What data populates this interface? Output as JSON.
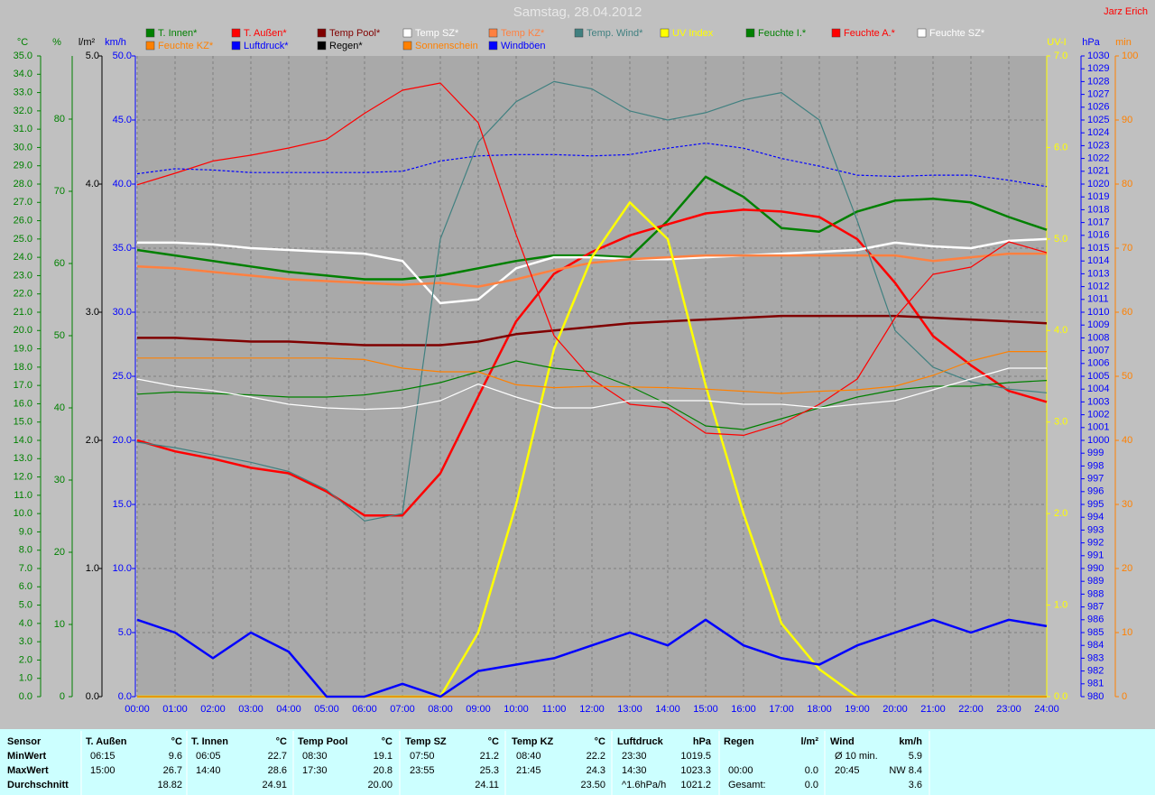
{
  "chart_data": {
    "type": "line",
    "title": "Samstag, 28.04.2012",
    "author": "Jarz Erich",
    "xlim": [
      0,
      24
    ],
    "xticks": [
      {
        "value": 0,
        "label": "00:00"
      },
      {
        "value": 1,
        "label": "01:00"
      },
      {
        "value": 2,
        "label": "02:00"
      },
      {
        "value": 3,
        "label": "03:00"
      },
      {
        "value": 4,
        "label": "04:00"
      },
      {
        "value": 5,
        "label": "05:00"
      },
      {
        "value": 6,
        "label": "06:00"
      },
      {
        "value": 7,
        "label": "07:00"
      },
      {
        "value": 8,
        "label": "08:00"
      },
      {
        "value": 9,
        "label": "09:00"
      },
      {
        "value": 10,
        "label": "10:00"
      },
      {
        "value": 11,
        "label": "11:00"
      },
      {
        "value": 12,
        "label": "12:00"
      },
      {
        "value": 13,
        "label": "13:00"
      },
      {
        "value": 14,
        "label": "14:00"
      },
      {
        "value": 15,
        "label": "15:00"
      },
      {
        "value": 16,
        "label": "16:00"
      },
      {
        "value": 17,
        "label": "17:00"
      },
      {
        "value": 18,
        "label": "18:00"
      },
      {
        "value": 19,
        "label": "19:00"
      },
      {
        "value": 20,
        "label": "20:00"
      },
      {
        "value": 21,
        "label": "21:00"
      },
      {
        "value": 22,
        "label": "22:00"
      },
      {
        "value": 23,
        "label": "23:00"
      },
      {
        "value": 24,
        "label": "24:00"
      }
    ],
    "x": [
      0,
      1,
      2,
      3,
      4,
      5,
      6,
      7,
      8,
      9,
      10,
      11,
      12,
      13,
      14,
      15,
      16,
      17,
      18,
      19,
      20,
      21,
      22,
      23,
      24
    ],
    "grid": true,
    "grid_axis": 3,
    "axes": [
      {
        "label": "°C",
        "color": "#008000",
        "lim": [
          0,
          35
        ],
        "ticks": [
          {
            "value": 0,
            "label": "0.0"
          },
          {
            "value": 1,
            "label": "1.0"
          },
          {
            "value": 2,
            "label": "2.0"
          },
          {
            "value": 3,
            "label": "3.0"
          },
          {
            "value": 4,
            "label": "4.0"
          },
          {
            "value": 5,
            "label": "5.0"
          },
          {
            "value": 6,
            "label": "6.0"
          },
          {
            "value": 7,
            "label": "7.0"
          },
          {
            "value": 8,
            "label": "8.0"
          },
          {
            "value": 9,
            "label": "9.0"
          },
          {
            "value": 10,
            "label": "10.0"
          },
          {
            "value": 11,
            "label": "11.0"
          },
          {
            "value": 12,
            "label": "12.0"
          },
          {
            "value": 13,
            "label": "13.0"
          },
          {
            "value": 14,
            "label": "14.0"
          },
          {
            "value": 15,
            "label": "15.0"
          },
          {
            "value": 16,
            "label": "16.0"
          },
          {
            "value": 17,
            "label": "17.0"
          },
          {
            "value": 18,
            "label": "18.0"
          },
          {
            "value": 19,
            "label": "19.0"
          },
          {
            "value": 20,
            "label": "20.0"
          },
          {
            "value": 21,
            "label": "21.0"
          },
          {
            "value": 22,
            "label": "22.0"
          },
          {
            "value": 23,
            "label": "23.0"
          },
          {
            "value": 24,
            "label": "24.0"
          },
          {
            "value": 25,
            "label": "25.0"
          },
          {
            "value": 26,
            "label": "26.0"
          },
          {
            "value": 27,
            "label": "27.0"
          },
          {
            "value": 28,
            "label": "28.0"
          },
          {
            "value": 29,
            "label": "29.0"
          },
          {
            "value": 30,
            "label": "30.0"
          },
          {
            "value": 31,
            "label": "31.0"
          },
          {
            "value": 32,
            "label": "32.0"
          },
          {
            "value": 33,
            "label": "33.0"
          },
          {
            "value": 34,
            "label": "34.0"
          },
          {
            "value": 35,
            "label": "35.0"
          }
        ]
      },
      {
        "label": "%",
        "color": "#008000",
        "lim": [
          0,
          88.75
        ],
        "ticks": [
          0,
          10,
          20,
          30,
          40,
          50,
          60,
          70,
          80
        ]
      },
      {
        "label": "l/m²",
        "color": "#000000",
        "lim": [
          0,
          5
        ],
        "ticks": [
          {
            "value": 0,
            "label": "0.0"
          },
          {
            "value": 1,
            "label": "1.0"
          },
          {
            "value": 2,
            "label": "2.0"
          },
          {
            "value": 3,
            "label": "3.0"
          },
          {
            "value": 4,
            "label": "4.0"
          },
          {
            "value": 5,
            "label": "5.0"
          }
        ]
      },
      {
        "label": "km/h",
        "color": "#0000ff",
        "lim": [
          0,
          50
        ],
        "ticks": [
          {
            "value": 0,
            "label": "0.0"
          },
          {
            "value": 5,
            "label": "5.0"
          },
          {
            "value": 10,
            "label": "10.0"
          },
          {
            "value": 15,
            "label": "15.0"
          },
          {
            "value": 20,
            "label": "20.0"
          },
          {
            "value": 25,
            "label": "25.0"
          },
          {
            "value": 30,
            "label": "30.0"
          },
          {
            "value": 35,
            "label": "35.0"
          },
          {
            "value": 40,
            "label": "40.0"
          },
          {
            "value": 45,
            "label": "45.0"
          },
          {
            "value": 50,
            "label": "50.0"
          }
        ]
      },
      {
        "label": "UV-I",
        "color": "#ffff00",
        "lim": [
          0,
          7
        ],
        "ticks": [
          {
            "value": 0,
            "label": "0.0"
          },
          {
            "value": 1,
            "label": "1.0"
          },
          {
            "value": 2,
            "label": "2.0"
          },
          {
            "value": 3,
            "label": "3.0"
          },
          {
            "value": 4,
            "label": "4.0"
          },
          {
            "value": 5,
            "label": "5.0"
          },
          {
            "value": 6,
            "label": "6.0"
          },
          {
            "value": 7,
            "label": "7.0"
          }
        ]
      },
      {
        "label": "hPa",
        "color": "#0000ff",
        "lim": [
          980,
          1030
        ],
        "ticks": [
          980,
          981,
          982,
          983,
          984,
          985,
          986,
          987,
          988,
          989,
          990,
          991,
          992,
          993,
          994,
          995,
          996,
          997,
          998,
          999,
          1000,
          1001,
          1002,
          1003,
          1004,
          1005,
          1006,
          1007,
          1008,
          1009,
          1010,
          1011,
          1012,
          1013,
          1014,
          1015,
          1016,
          1017,
          1018,
          1019,
          1020,
          1021,
          1022,
          1023,
          1024,
          1025,
          1026,
          1027,
          1028,
          1029,
          1030
        ]
      },
      {
        "label": "min",
        "color": "#ff8000",
        "lim": [
          0,
          100
        ],
        "ticks": [
          0,
          10,
          20,
          30,
          40,
          50,
          60,
          70,
          80,
          90,
          100
        ]
      }
    ],
    "series": [
      {
        "name": "T. Innen*",
        "color": "#008000",
        "axis": 0,
        "thick": true,
        "values": [
          24.4,
          24.1,
          23.8,
          23.5,
          23.2,
          23.0,
          22.8,
          22.8,
          23.0,
          23.4,
          23.8,
          24.1,
          24.1,
          24.0,
          26.0,
          28.4,
          27.3,
          25.6,
          25.4,
          26.5,
          27.1,
          27.2,
          27.0,
          26.2,
          25.5
        ]
      },
      {
        "name": "T. Außen*",
        "color": "#ff0000",
        "axis": 0,
        "thick": true,
        "values": [
          14.0,
          13.4,
          13.0,
          12.5,
          12.2,
          11.2,
          9.9,
          9.9,
          12.2,
          16.4,
          20.5,
          23.1,
          24.3,
          25.2,
          25.8,
          26.4,
          26.6,
          26.5,
          26.2,
          25.0,
          22.6,
          19.7,
          18.1,
          16.7,
          16.1
        ]
      },
      {
        "name": "Temp Pool*",
        "color": "#800000",
        "axis": 0,
        "thick": true,
        "values": [
          19.6,
          19.6,
          19.5,
          19.4,
          19.4,
          19.3,
          19.2,
          19.2,
          19.2,
          19.4,
          19.8,
          20.0,
          20.2,
          20.4,
          20.5,
          20.6,
          20.7,
          20.8,
          20.8,
          20.8,
          20.8,
          20.7,
          20.6,
          20.5,
          20.4
        ]
      },
      {
        "name": "Temp SZ*",
        "color": "#ffffff",
        "axis": 0,
        "thick": true,
        "values": [
          24.8,
          24.8,
          24.7,
          24.5,
          24.4,
          24.3,
          24.2,
          23.8,
          21.5,
          21.7,
          23.4,
          24.0,
          24.0,
          23.9,
          23.9,
          24.0,
          24.1,
          24.2,
          24.3,
          24.4,
          24.8,
          24.6,
          24.5,
          24.9,
          25.0
        ]
      },
      {
        "name": "Temp KZ*",
        "color": "#ff8040",
        "axis": 0,
        "thick": true,
        "values": [
          23.5,
          23.4,
          23.2,
          23.0,
          22.8,
          22.7,
          22.6,
          22.5,
          22.6,
          22.4,
          22.8,
          23.3,
          23.7,
          23.9,
          24.0,
          24.1,
          24.1,
          24.1,
          24.1,
          24.1,
          24.1,
          23.8,
          24.0,
          24.2,
          24.2
        ]
      },
      {
        "name": "Temp. Wind*",
        "color": "#408080",
        "axis": 0,
        "values": [
          13.9,
          13.6,
          13.2,
          12.8,
          12.3,
          11.3,
          9.6,
          10.0,
          25.0,
          30.3,
          32.5,
          33.6,
          33.2,
          32.0,
          31.5,
          31.9,
          32.6,
          33.0,
          31.5,
          26.0,
          20.0,
          18.0,
          17.2,
          16.8,
          16.6
        ]
      },
      {
        "name": "UV Index",
        "color": "#ffff00",
        "axis": 4,
        "thick": true,
        "values": [
          0,
          0,
          0,
          0,
          0,
          0,
          0,
          0,
          0,
          0.7,
          2.1,
          3.8,
          4.8,
          5.4,
          5.0,
          3.4,
          2.0,
          0.8,
          0.3,
          0,
          0,
          0,
          0,
          0,
          0
        ]
      },
      {
        "name": "Feuchte I.*",
        "color": "#008000",
        "axis": 1,
        "values": [
          41.9,
          42.2,
          42.0,
          41.8,
          41.5,
          41.5,
          41.8,
          42.5,
          43.5,
          45.0,
          46.5,
          45.5,
          45.0,
          43.0,
          40.5,
          37.5,
          37.0,
          38.5,
          40.0,
          41.5,
          42.5,
          43.0,
          43.0,
          43.5,
          43.8
        ]
      },
      {
        "name": "Feuchte A.*",
        "color": "#ff0000",
        "axis": 1,
        "values": [
          70.9,
          72.5,
          74.2,
          75.0,
          76.0,
          77.2,
          80.8,
          84.0,
          85.0,
          79.5,
          64.0,
          50.0,
          44.0,
          40.5,
          40.0,
          36.5,
          36.2,
          37.8,
          40.5,
          44.0,
          52.5,
          58.5,
          59.5,
          63.0,
          61.5
        ]
      },
      {
        "name": "Feuchte SZ*",
        "color": "#ffffff",
        "axis": 1,
        "values": [
          44.0,
          43.0,
          42.4,
          41.5,
          40.5,
          40.0,
          39.8,
          40.0,
          41.0,
          43.3,
          41.5,
          40.0,
          40.0,
          41.0,
          41.0,
          41.0,
          40.5,
          40.5,
          40.0,
          40.5,
          41.0,
          42.5,
          44.0,
          45.5,
          45.5
        ]
      },
      {
        "name": "Feuchte KZ*",
        "color": "#ff8000",
        "axis": 1,
        "values": [
          46.9,
          46.9,
          46.9,
          46.9,
          46.9,
          46.9,
          46.7,
          45.5,
          45.0,
          45.0,
          43.2,
          42.8,
          43.0,
          42.9,
          42.8,
          42.6,
          42.3,
          42.0,
          42.3,
          42.5,
          43.0,
          44.5,
          46.5,
          47.8,
          47.8
        ]
      },
      {
        "name": "Luftdruck*",
        "color": "#0000ff",
        "axis": 5,
        "dash": true,
        "values": [
          1020.8,
          1021.2,
          1021.1,
          1020.9,
          1020.9,
          1020.9,
          1020.9,
          1021.0,
          1021.8,
          1022.2,
          1022.3,
          1022.3,
          1022.2,
          1022.3,
          1022.8,
          1023.2,
          1022.8,
          1022.0,
          1021.4,
          1020.7,
          1020.6,
          1020.7,
          1020.7,
          1020.3,
          1019.8
        ]
      },
      {
        "name": "Regen*",
        "color": "#000000",
        "axis": 2,
        "values": [
          0,
          0,
          0,
          0,
          0,
          0,
          0,
          0,
          0,
          0,
          0,
          0,
          0,
          0,
          0,
          0,
          0,
          0,
          0,
          0,
          0,
          0,
          0,
          0,
          0
        ]
      },
      {
        "name": "Sonnenschein",
        "color": "#ff8000",
        "axis": 6,
        "values": [
          0,
          0,
          0,
          0,
          0,
          0,
          0,
          0,
          0,
          0,
          0,
          0,
          0,
          0,
          0,
          0,
          0,
          0,
          0,
          0,
          0,
          0,
          0,
          0,
          0
        ]
      },
      {
        "name": "Windböen",
        "color": "#0000ff",
        "axis": 3,
        "thick": true,
        "values": [
          6.0,
          5.0,
          3.0,
          5.0,
          3.5,
          0,
          0,
          1.0,
          0,
          2.0,
          2.5,
          3.0,
          4.0,
          5.0,
          4.0,
          6.0,
          4.0,
          3.0,
          2.5,
          4.0,
          5.0,
          6.0,
          5.0,
          6.0,
          5.5
        ]
      }
    ]
  },
  "table": {
    "sensor": "Sensor",
    "columns": [
      {
        "name": "T. Außen",
        "unit": "°C"
      },
      {
        "name": "T. Innen",
        "unit": "°C"
      },
      {
        "name": "Temp Pool",
        "unit": "°C"
      },
      {
        "name": "Temp SZ",
        "unit": "°C"
      },
      {
        "name": "Temp KZ",
        "unit": "°C"
      },
      {
        "name": "Luftdruck",
        "unit": "hPa"
      },
      {
        "name": "Regen",
        "unit": "l/m²"
      },
      {
        "name": "Wind",
        "unit": "km/h"
      }
    ],
    "rows": [
      {
        "label": "MinWert",
        "cells": [
          [
            "06:15",
            "9.6"
          ],
          [
            "06:05",
            "22.7"
          ],
          [
            "08:30",
            "19.1"
          ],
          [
            "07:50",
            "21.2"
          ],
          [
            "08:40",
            "22.2"
          ],
          [
            "23:30",
            "1019.5"
          ],
          [],
          [
            "Ø 10 min.",
            "5.9"
          ]
        ]
      },
      {
        "label": "MaxWert",
        "cells": [
          [
            "15:00",
            "26.7"
          ],
          [
            "14:40",
            "28.6"
          ],
          [
            "17:30",
            "20.8"
          ],
          [
            "23:55",
            "25.3"
          ],
          [
            "21:45",
            "24.3"
          ],
          [
            "14:30",
            "1023.3"
          ],
          [
            "00:00",
            "0.0"
          ],
          [
            "20:45",
            "NW 8.4"
          ]
        ]
      },
      {
        "label": "Durchschnitt",
        "cells": [
          [
            "18.82"
          ],
          [
            "24.91"
          ],
          [
            "20.00"
          ],
          [
            "24.11"
          ],
          [
            "23.50"
          ],
          [
            "^1.6hPa/h",
            "1021.2"
          ],
          [
            "Gesamt:",
            "0.0"
          ],
          [
            "3.6"
          ]
        ]
      }
    ]
  }
}
